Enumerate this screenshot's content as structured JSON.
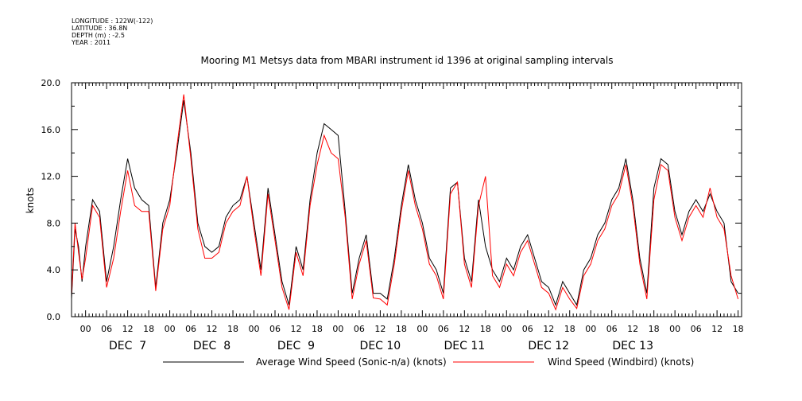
{
  "meta": {
    "longitude": "LONGITUDE : 122W(-122)",
    "latitude": "LATITUDE : 36.8N",
    "depth": "DEPTH (m) : -2.5",
    "year": "YEAR : 2011"
  },
  "chart_data": {
    "type": "line",
    "title": "Mooring M1 Metsys data from MBARI instrument id 1396 at original sampling intervals",
    "ylabel": "knots",
    "xlabel": "",
    "ylim": [
      0,
      20
    ],
    "yticks": [
      0,
      4,
      8,
      12,
      16,
      20
    ],
    "ytick_labels": [
      "0.0",
      "4.0",
      "8.0",
      "12.0",
      "16.0",
      "20.0"
    ],
    "xlim_hours": [
      -4,
      187
    ],
    "hour_labels": [
      "00",
      "06",
      "12",
      "18"
    ],
    "day_labels": [
      "DEC  7",
      "DEC  8",
      "DEC  9",
      "DEC 10",
      "DEC 11",
      "DEC 12",
      "DEC 13"
    ],
    "x_unit": "hours since DEC 7 00:00",
    "grid": false,
    "legend_position": "bottom",
    "series": [
      {
        "name": "Average Wind Speed (Sonic-n/a) (knots)",
        "color": "#000000",
        "x": [
          -4,
          -3,
          -2,
          -1,
          0,
          2,
          4,
          6,
          8,
          10,
          12,
          14,
          16,
          18,
          20,
          22,
          24,
          26,
          28,
          30,
          32,
          34,
          36,
          38,
          40,
          42,
          44,
          46,
          48,
          50,
          52,
          54,
          56,
          58,
          60,
          62,
          64,
          66,
          68,
          70,
          72,
          74,
          76,
          78,
          80,
          82,
          84,
          86,
          88,
          90,
          92,
          94,
          96,
          98,
          100,
          102,
          104,
          106,
          108,
          110,
          112,
          114,
          116,
          118,
          120,
          122,
          124,
          126,
          128,
          130,
          132,
          134,
          136,
          138,
          140,
          142,
          144,
          146,
          148,
          150,
          152,
          154,
          156,
          158,
          160,
          162,
          164,
          166,
          168,
          170,
          172,
          174,
          176,
          178,
          180,
          182,
          184,
          186
        ],
        "values": [
          1.5,
          7.5,
          6.0,
          3.0,
          6.0,
          10.0,
          9.0,
          3.0,
          6.0,
          10.0,
          13.5,
          11.0,
          10.0,
          9.5,
          2.5,
          8.0,
          10.0,
          14.0,
          18.5,
          14.0,
          8.0,
          6.0,
          5.5,
          6.0,
          8.5,
          9.5,
          10.0,
          12.0,
          8.0,
          4.0,
          11.0,
          7.0,
          3.0,
          1.0,
          6.0,
          4.0,
          10.0,
          14.0,
          16.5,
          16.0,
          15.5,
          9.0,
          2.0,
          5.0,
          7.0,
          2.0,
          2.0,
          1.5,
          5.0,
          9.5,
          13.0,
          10.0,
          8.0,
          5.0,
          4.0,
          2.0,
          11.0,
          11.5,
          5.0,
          3.0,
          10.0,
          6.0,
          4.0,
          3.0,
          5.0,
          4.0,
          6.0,
          7.0,
          5.0,
          3.0,
          2.5,
          1.0,
          3.0,
          2.0,
          1.0,
          4.0,
          5.0,
          7.0,
          8.0,
          10.0,
          11.0,
          13.5,
          10.0,
          5.0,
          2.0,
          11.0,
          13.5,
          13.0,
          9.0,
          7.0,
          9.0,
          10.0,
          9.0,
          10.5,
          9.0,
          8.0,
          3.0,
          2.0
        ]
      },
      {
        "name": "Wind Speed (Windbird) (knots)",
        "color": "#ff0000",
        "x": [
          -4,
          -3,
          -2,
          -1,
          0,
          2,
          4,
          6,
          8,
          10,
          12,
          14,
          16,
          18,
          20,
          22,
          24,
          26,
          28,
          30,
          32,
          34,
          36,
          38,
          40,
          42,
          44,
          46,
          48,
          50,
          52,
          54,
          56,
          58,
          60,
          62,
          64,
          66,
          68,
          70,
          72,
          74,
          76,
          78,
          80,
          82,
          84,
          86,
          88,
          90,
          92,
          94,
          96,
          98,
          100,
          102,
          104,
          106,
          108,
          110,
          112,
          114,
          116,
          118,
          120,
          122,
          124,
          126,
          128,
          130,
          132,
          134,
          136,
          138,
          140,
          142,
          144,
          146,
          148,
          150,
          152,
          154,
          156,
          158,
          160,
          162,
          164,
          166,
          168,
          170,
          172,
          174,
          176,
          178,
          180,
          182,
          184,
          186
        ],
        "values": [
          1.8,
          8.0,
          5.5,
          3.2,
          5.0,
          9.5,
          8.5,
          2.5,
          5.0,
          9.0,
          12.5,
          9.5,
          9.0,
          9.0,
          2.2,
          7.5,
          9.5,
          14.5,
          19.0,
          13.5,
          7.5,
          5.0,
          5.0,
          5.5,
          8.0,
          9.0,
          9.5,
          12.0,
          7.5,
          3.5,
          10.5,
          6.5,
          2.5,
          0.6,
          5.5,
          3.5,
          9.5,
          13.0,
          15.5,
          14.0,
          13.5,
          8.5,
          1.5,
          4.5,
          6.5,
          1.6,
          1.5,
          1.0,
          4.5,
          9.0,
          12.5,
          9.5,
          7.5,
          4.5,
          3.5,
          1.5,
          10.5,
          11.5,
          4.5,
          2.5,
          9.5,
          12.0,
          3.5,
          2.5,
          4.5,
          3.5,
          5.5,
          6.5,
          4.5,
          2.5,
          2.0,
          0.6,
          2.5,
          1.5,
          0.7,
          3.5,
          4.5,
          6.5,
          7.5,
          9.5,
          10.5,
          13.0,
          9.5,
          4.5,
          1.5,
          10.0,
          13.0,
          12.5,
          8.5,
          6.5,
          8.5,
          9.5,
          8.5,
          11.0,
          8.5,
          7.5,
          3.5,
          1.5
        ]
      }
    ]
  }
}
